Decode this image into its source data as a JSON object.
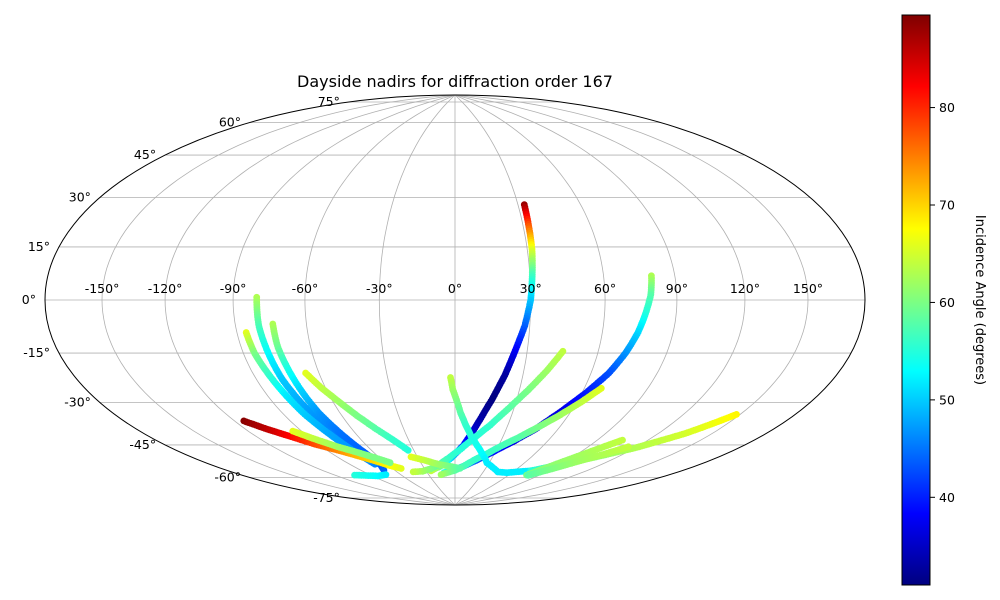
{
  "chart_data": {
    "type": "scatter",
    "projection": "hammer",
    "title": "Dayside nadirs for diffraction order 167",
    "xticks": [
      -150,
      -120,
      -90,
      -60,
      -30,
      0,
      30,
      60,
      90,
      120,
      150
    ],
    "xtick_labels": [
      "-150°",
      "-120°",
      "-90°",
      "-60°",
      "-30°",
      "0°",
      "30°",
      "60°",
      "90°",
      "120°",
      "150°"
    ],
    "yticks": [
      75,
      60,
      45,
      30,
      15,
      0,
      -15,
      -30,
      -45,
      -60,
      -75
    ],
    "ytick_labels": [
      "75°",
      "60°",
      "45°",
      "30°",
      "15°",
      "0°",
      "-15°",
      "-30°",
      "-45°",
      "-60°",
      "-75°"
    ],
    "grid": true,
    "colormap": "jet",
    "colorbar": {
      "label": "Incidence Angle (degrees)",
      "range": [
        31,
        89.5
      ],
      "ticks": [
        40,
        50,
        60,
        70,
        80
      ],
      "tick_labels": [
        "40",
        "50",
        "60",
        "70",
        "80"
      ]
    },
    "tracks": [
      {
        "lon": [
          33,
          32.5,
          32,
          31,
          30,
          28,
          25,
          22,
          18,
          14,
          10,
          6,
          2,
          -3,
          -8,
          -14,
          -20,
          -25
        ],
        "lat": [
          38,
          30,
          20,
          10,
          0,
          -10,
          -20,
          -30,
          -40,
          -48,
          -55,
          -60,
          -63,
          -66,
          -68,
          -70,
          -71,
          -72
        ],
        "inc": [
          88,
          78,
          66,
          57,
          50,
          44,
          38,
          33,
          31,
          33,
          36,
          40,
          45,
          50,
          55,
          58,
          62,
          64
        ]
      },
      {
        "lon": [
          80,
          79,
          77,
          75,
          72,
          68,
          62,
          55,
          47,
          38,
          28,
          18,
          8,
          -2,
          -12
        ],
        "lat": [
          9,
          2,
          -5,
          -12,
          -20,
          -28,
          -36,
          -44,
          -52,
          -58,
          -63,
          -67,
          -70,
          -72,
          -73
        ],
        "inc": [
          63,
          58,
          55,
          51,
          47,
          43,
          40,
          37,
          36,
          37,
          39,
          42,
          46,
          50,
          54
        ]
      },
      {
        "lon": [
          45,
          40,
          34,
          27,
          20,
          12,
          4,
          -5,
          -14,
          -24,
          -34,
          -44
        ],
        "lat": [
          -20,
          -28,
          -36,
          -44,
          -51,
          -57,
          -62,
          -66,
          -69,
          -71,
          -72,
          -72
        ],
        "inc": [
          64,
          62,
          60,
          58,
          56,
          55,
          55,
          56,
          58,
          60,
          62,
          64
        ]
      },
      {
        "lon": [
          68,
          62,
          55,
          48,
          40,
          32,
          24,
          16,
          8,
          0,
          -8,
          -16
        ],
        "lat": [
          -34,
          -40,
          -46,
          -51,
          -56,
          -60,
          -64,
          -67,
          -70,
          -72,
          -73,
          -74
        ],
        "inc": [
          66,
          64,
          62,
          60,
          58,
          57,
          56,
          56,
          57,
          58,
          60,
          62
        ]
      },
      {
        "lon": [
          -2,
          -1,
          1,
          3,
          6,
          10,
          15,
          21,
          28,
          36,
          45,
          55,
          65,
          75
        ],
        "lat": [
          -31,
          -36,
          -41,
          -46,
          -51,
          -56,
          -60,
          -64,
          -68,
          -70,
          -72,
          -72,
          -71,
          -70
        ],
        "inc": [
          64,
          62,
          60,
          58,
          56,
          55,
          54,
          53,
          52,
          52,
          52,
          52,
          52,
          52
        ]
      },
      {
        "lon": [
          75,
          90,
          105,
          120,
          135,
          148
        ],
        "lat": [
          -70,
          -66,
          -61,
          -55,
          -47,
          -38
        ],
        "inc": [
          55,
          58,
          61,
          63,
          65,
          68
        ]
      },
      {
        "lon": [
          78,
          85,
          92,
          99,
          105
        ],
        "lat": [
          -72,
          -67,
          -62,
          -57,
          -53
        ],
        "inc": [
          60,
          61,
          62,
          63,
          64
        ]
      },
      {
        "lon": [
          80,
          90,
          100,
          108,
          115
        ],
        "lat": [
          -72,
          -68,
          -63,
          -59,
          -55
        ],
        "inc": [
          58,
          60,
          62,
          63,
          64
        ]
      },
      {
        "lon": [
          -80,
          -80,
          -79,
          -78,
          -76,
          -73,
          -70,
          -66
        ],
        "lat": [
          1,
          -10,
          -20,
          -30,
          -40,
          -50,
          -60,
          -68
        ],
        "inc": [
          63,
          57,
          53,
          50,
          48,
          46,
          45,
          44
        ]
      },
      {
        "lon": [
          -74,
          -74,
          -73,
          -72,
          -71,
          -69,
          -67,
          -65,
          -70
        ],
        "lat": [
          -9,
          -18,
          -27,
          -36,
          -44,
          -52,
          -60,
          -67,
          -70
        ],
        "inc": [
          63,
          59,
          54,
          50,
          47,
          45,
          44,
          43,
          44
        ]
      },
      {
        "lon": [
          -86,
          -85,
          -83,
          -81,
          -79,
          -76,
          -73,
          -70
        ],
        "lat": [
          -12,
          -20,
          -28,
          -36,
          -44,
          -52,
          -60,
          -67
        ],
        "inc": [
          66,
          60,
          56,
          52,
          50,
          48,
          47,
          46
        ]
      },
      {
        "lon": [
          -115,
          -108,
          -100,
          -92,
          -84,
          -76,
          -68,
          -60,
          -52
        ],
        "lat": [
          -44,
          -48,
          -52,
          -56,
          -59,
          -62,
          -65,
          -68,
          -70
        ],
        "inc": [
          89,
          86,
          82,
          78,
          75,
          72,
          70,
          68,
          66
        ]
      },
      {
        "lon": [
          -66,
          -62,
          -57,
          -52,
          -46,
          -40,
          -34
        ],
        "lat": [
          -28,
          -34,
          -40,
          -46,
          -52,
          -57,
          -62
        ],
        "inc": [
          66,
          64,
          62,
          60,
          58,
          56,
          55
        ]
      },
      {
        "lon": [
          -95,
          -88,
          -80,
          -72,
          -64,
          -56
        ],
        "lat": [
          -50,
          -54,
          -58,
          -61,
          -64,
          -67
        ],
        "inc": [
          66,
          64,
          62,
          61,
          60,
          60
        ]
      },
      {
        "lon": [
          -104,
          -95,
          -85,
          -75
        ],
        "lat": [
          -70,
          -71,
          -72,
          -72
        ],
        "inc": [
          55,
          54,
          53,
          52
        ]
      },
      {
        "lon": [
          -35,
          -25,
          -15,
          -5,
          5
        ],
        "lat": [
          -65,
          -67,
          -69,
          -70,
          -71
        ],
        "inc": [
          66,
          64,
          62,
          60,
          58
        ]
      }
    ]
  }
}
